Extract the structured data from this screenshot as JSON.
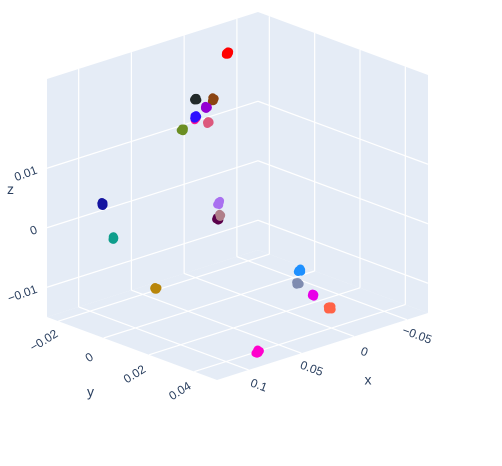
{
  "chart_data": {
    "type": "scatter3d",
    "title": "",
    "axes": {
      "x": {
        "title": "x",
        "ticks": [
          {
            "v": -0.05,
            "label": "−0.05"
          },
          {
            "v": 0,
            "label": "0"
          },
          {
            "v": 0.05,
            "label": "0.05"
          },
          {
            "v": 0.1,
            "label": "0.1"
          }
        ],
        "range": [
          -0.07,
          0.13
        ]
      },
      "y": {
        "title": "y",
        "ticks": [
          {
            "v": -0.02,
            "label": "−0.02"
          },
          {
            "v": 0,
            "label": "0"
          },
          {
            "v": 0.02,
            "label": "0.02"
          },
          {
            "v": 0.04,
            "label": "0.04"
          }
        ],
        "range": [
          -0.025,
          0.05
        ]
      },
      "z": {
        "title": "z",
        "ticks": [
          {
            "v": -0.01,
            "label": "−0.01"
          },
          {
            "v": 0,
            "label": "0"
          },
          {
            "v": 0.01,
            "label": "0.01"
          }
        ],
        "range": [
          -0.015,
          0.025
        ]
      }
    },
    "background_color": "#E5ECF6",
    "grid": true,
    "legend": "none",
    "clusters": [
      {
        "color": "#FF0000",
        "x": -0.03,
        "y": -0.02,
        "z": 0.021,
        "count": 14
      },
      {
        "color": "#222A2A",
        "x": 0.0,
        "y": -0.02,
        "z": 0.015,
        "count": 14
      },
      {
        "color": "#8B4513",
        "x": -0.017,
        "y": -0.02,
        "z": 0.014,
        "count": 14
      },
      {
        "color": "#9400D3",
        "x": -0.01,
        "y": -0.02,
        "z": 0.013,
        "count": 14
      },
      {
        "color": "#FF1493",
        "x": 0.002,
        "y": -0.019,
        "z": 0.012,
        "count": 10
      },
      {
        "color": "#DC587D",
        "x": -0.008,
        "y": -0.018,
        "z": 0.011,
        "count": 12
      },
      {
        "color": "#6B8E23",
        "x": 0.008,
        "y": -0.022,
        "z": 0.01,
        "count": 10
      },
      {
        "color": "#2E0FFF",
        "x": 0.0,
        "y": -0.02,
        "z": 0.012,
        "count": 14
      },
      {
        "color": "#1414A0",
        "x": 0.11,
        "y": -0.01,
        "z": 0.005,
        "count": 14
      },
      {
        "color": "#0F9E8C",
        "x": 0.11,
        "y": -0.005,
        "z": 0.0,
        "count": 14
      },
      {
        "color": "#B8860B",
        "x": 0.1,
        "y": 0.009,
        "z": -0.007,
        "count": 12
      },
      {
        "color": "#FF00CC",
        "x": 0.07,
        "y": 0.04,
        "z": -0.015,
        "count": 14
      },
      {
        "color": "#5A004B",
        "x": 0.03,
        "y": 0.004,
        "z": 0.0,
        "count": 18
      },
      {
        "color": "#B07F8A",
        "x": 0.024,
        "y": 0.002,
        "z": 0.0,
        "count": 10
      },
      {
        "color": "#A970F0",
        "x": 0.008,
        "y": -0.006,
        "z": 0.0,
        "count": 12
      },
      {
        "color": "#1E90FF",
        "x": -0.03,
        "y": 0.012,
        "z": -0.011,
        "count": 14
      },
      {
        "color": "#7F8CB0",
        "x": -0.02,
        "y": 0.016,
        "z": -0.012,
        "count": 10
      },
      {
        "color": "#E800E8",
        "x": -0.028,
        "y": 0.019,
        "z": -0.014,
        "count": 10
      },
      {
        "color": "#FF6347",
        "x": -0.035,
        "y": 0.023,
        "z": -0.016,
        "count": 12
      }
    ]
  }
}
